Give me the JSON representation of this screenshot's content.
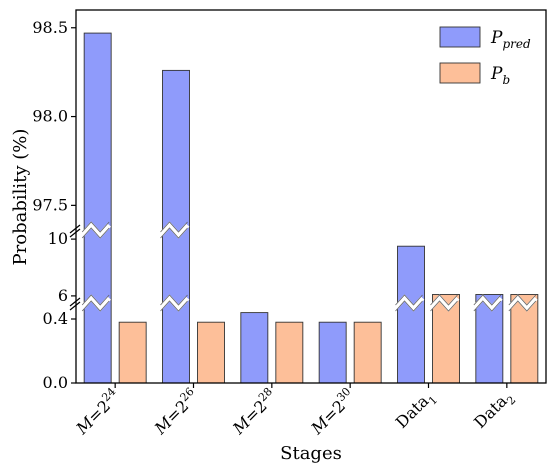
{
  "chart_data": {
    "type": "bar",
    "xlabel": "Stages",
    "ylabel": "Probability (%)",
    "categories": [
      {
        "base": "M",
        "eq": "=2",
        "sup": "24",
        "sub": ""
      },
      {
        "base": "M",
        "eq": "=2",
        "sup": "26",
        "sub": ""
      },
      {
        "base": "M",
        "eq": "=2",
        "sup": "28",
        "sub": ""
      },
      {
        "base": "M",
        "eq": "=2",
        "sup": "30",
        "sub": ""
      },
      {
        "base": "Data",
        "eq": "",
        "sup": "",
        "sub": "1"
      },
      {
        "base": "Data",
        "eq": "",
        "sup": "",
        "sub": "2"
      }
    ],
    "series": [
      {
        "name_main": "P",
        "name_sub": "pred",
        "color": "#8f9bfb",
        "values": [
          98.47,
          98.26,
          0.44,
          0.38,
          9.5,
          6.1
        ]
      },
      {
        "name_main": "P",
        "name_sub": "b",
        "color": "#fdbf99",
        "values": [
          0.38,
          0.38,
          0.38,
          0.38,
          6.1,
          6.1
        ]
      }
    ],
    "broken_axis": true,
    "segments": [
      {
        "range": [
          0,
          0.5
        ],
        "ticks": [
          0.0,
          0.4
        ],
        "tick_labels": [
          "0.0",
          "0.4"
        ]
      },
      {
        "range": [
          5.5,
          10.5
        ],
        "ticks": [
          6,
          10
        ],
        "tick_labels": [
          "6",
          "10"
        ]
      },
      {
        "range": [
          97.35,
          98.6
        ],
        "ticks": [
          97.5,
          98.0,
          98.5
        ],
        "tick_labels": [
          "97.5",
          "98.0",
          "98.5"
        ]
      }
    ],
    "legend_position": "top-right",
    "grid": false
  }
}
